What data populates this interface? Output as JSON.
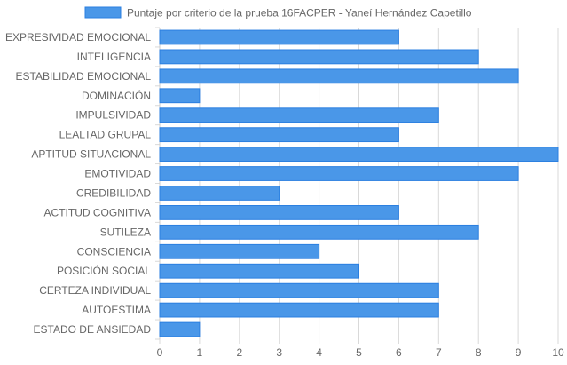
{
  "chart_data": {
    "type": "bar",
    "orientation": "horizontal",
    "categories": [
      "EXPRESIVIDAD EMOCIONAL",
      "INTELIGENCIA",
      "ESTABILIDAD EMOCIONAL",
      "DOMINACIÓN",
      "IMPULSIVIDAD",
      "LEALTAD GRUPAL",
      "APTITUD SITUACIONAL",
      "EMOTIVIDAD",
      "CREDIBILIDAD",
      "ACTITUD COGNITIVA",
      "SUTILEZA",
      "CONSCIENCIA",
      "POSICIÓN SOCIAL",
      "CERTEZA INDIVIDUAL",
      "AUTOESTIMA",
      "ESTADO DE ANSIEDAD"
    ],
    "series": [
      {
        "name": "Puntaje por criterio de la prueba 16FACPER - Yaneí Hernández Capetillo",
        "values": [
          6,
          8,
          9,
          1,
          7,
          6,
          10,
          9,
          3,
          6,
          8,
          4,
          5,
          7,
          7,
          1
        ]
      }
    ],
    "xlim": [
      0,
      10
    ],
    "xticks": [
      "0",
      "1",
      "2",
      "3",
      "4",
      "5",
      "6",
      "7",
      "8",
      "9",
      "10"
    ],
    "grid": true,
    "legend_position": "top",
    "colors": {
      "bar_fill": "#4a97e8",
      "bar_stroke": "#2b7fe0",
      "grid": "#d9d9d9",
      "axis_text": "#666666"
    }
  }
}
